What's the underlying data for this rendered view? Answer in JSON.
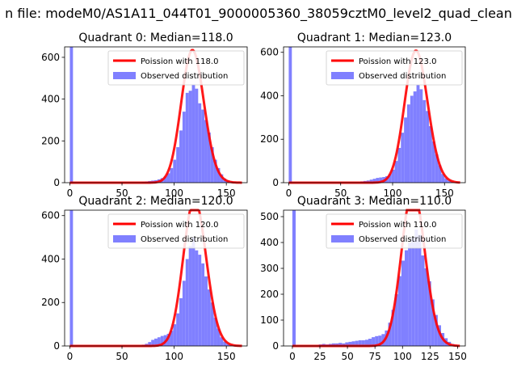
{
  "figure_title": "n file: modeM0/AS1A11_044T01_9000005360_38059cztM0_level2_quad_clean",
  "colors": {
    "poisson": "#ff0000",
    "observed": "#8080ff",
    "axes": "#000000"
  },
  "chart_data": [
    {
      "type": "bar",
      "title": "Quadrant 0: Median=118.0",
      "xlim": [
        -5,
        170
      ],
      "ylim": [
        0,
        650
      ],
      "xticks": [
        0,
        50,
        100,
        150
      ],
      "yticks": [
        0,
        200,
        400,
        600
      ],
      "legend_position": "top-right",
      "series": [
        {
          "name": "Poission with 118.0",
          "kind": "line",
          "mean": 118.0
        },
        {
          "name": "Observed distribution",
          "kind": "histogram",
          "bin_width": 3,
          "bins": [
            [
              0,
              650
            ],
            [
              69,
              4
            ],
            [
              72,
              6
            ],
            [
              75,
              8
            ],
            [
              78,
              10
            ],
            [
              81,
              12
            ],
            [
              84,
              16
            ],
            [
              87,
              22
            ],
            [
              90,
              30
            ],
            [
              93,
              45
            ],
            [
              96,
              70
            ],
            [
              99,
              110
            ],
            [
              102,
              170
            ],
            [
              105,
              250
            ],
            [
              108,
              340
            ],
            [
              111,
              430
            ],
            [
              114,
              440
            ],
            [
              117,
              470
            ],
            [
              120,
              450
            ],
            [
              123,
              380
            ],
            [
              126,
              350
            ],
            [
              129,
              300
            ],
            [
              132,
              240
            ],
            [
              135,
              170
            ],
            [
              138,
              110
            ],
            [
              141,
              70
            ],
            [
              144,
              40
            ],
            [
              147,
              20
            ],
            [
              150,
              10
            ],
            [
              153,
              6
            ],
            [
              156,
              4
            ],
            [
              159,
              2
            ]
          ]
        }
      ]
    },
    {
      "type": "bar",
      "title": "Quadrant 1: Median=123.0",
      "xlim": [
        -5,
        170
      ],
      "ylim": [
        0,
        625
      ],
      "xticks": [
        0,
        50,
        100,
        150
      ],
      "yticks": [
        0,
        200,
        400,
        600
      ],
      "legend_position": "top-right",
      "series": [
        {
          "name": "Poission with 123.0",
          "kind": "line",
          "mean": 123.0
        },
        {
          "name": "Observed distribution",
          "kind": "histogram",
          "bin_width": 3,
          "bins": [
            [
              0,
              625
            ],
            [
              69,
              6
            ],
            [
              72,
              8
            ],
            [
              75,
              10
            ],
            [
              78,
              14
            ],
            [
              81,
              18
            ],
            [
              84,
              22
            ],
            [
              87,
              24
            ],
            [
              90,
              26
            ],
            [
              93,
              30
            ],
            [
              96,
              40
            ],
            [
              99,
              60
            ],
            [
              102,
              100
            ],
            [
              105,
              160
            ],
            [
              108,
              230
            ],
            [
              111,
              300
            ],
            [
              114,
              360
            ],
            [
              117,
              400
            ],
            [
              120,
              420
            ],
            [
              123,
              450
            ],
            [
              126,
              430
            ],
            [
              129,
              380
            ],
            [
              132,
              330
            ],
            [
              135,
              260
            ],
            [
              138,
              190
            ],
            [
              141,
              130
            ],
            [
              144,
              80
            ],
            [
              147,
              40
            ],
            [
              150,
              20
            ],
            [
              153,
              10
            ],
            [
              156,
              5
            ],
            [
              159,
              2
            ]
          ]
        }
      ]
    },
    {
      "type": "bar",
      "title": "Quadrant 2: Median=120.0",
      "xlim": [
        -5,
        170
      ],
      "ylim": [
        0,
        625
      ],
      "xticks": [
        0,
        50,
        100,
        150
      ],
      "yticks": [
        0,
        200,
        400,
        600
      ],
      "legend_position": "top-right",
      "series": [
        {
          "name": "Poission with 120.0",
          "kind": "line",
          "mean": 120.0
        },
        {
          "name": "Observed distribution",
          "kind": "histogram",
          "bin_width": 3,
          "bins": [
            [
              0,
              625
            ],
            [
              69,
              6
            ],
            [
              72,
              10
            ],
            [
              75,
              18
            ],
            [
              78,
              28
            ],
            [
              81,
              34
            ],
            [
              84,
              40
            ],
            [
              87,
              46
            ],
            [
              90,
              50
            ],
            [
              93,
              56
            ],
            [
              96,
              70
            ],
            [
              99,
              100
            ],
            [
              102,
              150
            ],
            [
              105,
              220
            ],
            [
              108,
              300
            ],
            [
              111,
              400
            ],
            [
              114,
              460
            ],
            [
              117,
              500
            ],
            [
              120,
              440
            ],
            [
              123,
              420
            ],
            [
              126,
              380
            ],
            [
              129,
              320
            ],
            [
              132,
              260
            ],
            [
              135,
              200
            ],
            [
              138,
              130
            ],
            [
              141,
              80
            ],
            [
              144,
              40
            ],
            [
              147,
              20
            ],
            [
              150,
              10
            ],
            [
              153,
              6
            ],
            [
              156,
              3
            ],
            [
              159,
              2
            ]
          ]
        }
      ]
    },
    {
      "type": "bar",
      "title": "Quadrant 3: Median=110.0",
      "xlim": [
        -8,
        157
      ],
      "ylim": [
        0,
        525
      ],
      "xticks": [
        0,
        25,
        50,
        75,
        100,
        125,
        150
      ],
      "yticks": [
        0,
        100,
        200,
        300,
        400,
        500
      ],
      "legend_position": "top-right",
      "series": [
        {
          "name": "Poission with 110.0",
          "kind": "line",
          "mean": 110.0
        },
        {
          "name": "Observed distribution",
          "kind": "histogram",
          "bin_width": 3,
          "bins": [
            [
              0,
              525
            ],
            [
              24,
              6
            ],
            [
              27,
              8
            ],
            [
              30,
              6
            ],
            [
              33,
              8
            ],
            [
              36,
              10
            ],
            [
              39,
              10
            ],
            [
              42,
              12
            ],
            [
              45,
              10
            ],
            [
              48,
              14
            ],
            [
              51,
              16
            ],
            [
              54,
              18
            ],
            [
              57,
              20
            ],
            [
              60,
              22
            ],
            [
              63,
              22
            ],
            [
              66,
              24
            ],
            [
              69,
              28
            ],
            [
              72,
              34
            ],
            [
              75,
              38
            ],
            [
              78,
              40
            ],
            [
              81,
              46
            ],
            [
              84,
              60
            ],
            [
              87,
              90
            ],
            [
              90,
              140
            ],
            [
              93,
              200
            ],
            [
              96,
              270
            ],
            [
              99,
              330
            ],
            [
              102,
              370
            ],
            [
              105,
              400
            ],
            [
              108,
              420
            ],
            [
              111,
              450
            ],
            [
              114,
              430
            ],
            [
              117,
              350
            ],
            [
              120,
              300
            ],
            [
              123,
              250
            ],
            [
              126,
              180
            ],
            [
              129,
              120
            ],
            [
              132,
              80
            ],
            [
              135,
              50
            ],
            [
              138,
              30
            ],
            [
              141,
              16
            ],
            [
              144,
              8
            ],
            [
              147,
              4
            ]
          ]
        }
      ]
    }
  ]
}
